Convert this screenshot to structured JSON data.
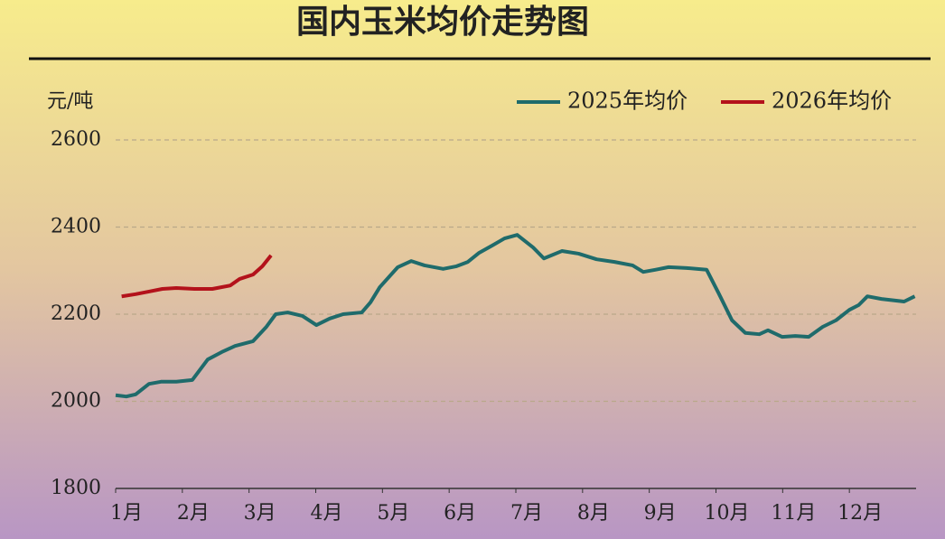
{
  "chart_data": {
    "type": "line",
    "title": "国内玉米均价走势图",
    "y_label": "元/吨",
    "xlim": [
      1,
      13
    ],
    "ylim": [
      1800,
      2600
    ],
    "xticks": [
      {
        "value": 1,
        "label": "1月"
      },
      {
        "value": 2,
        "label": "2月"
      },
      {
        "value": 3,
        "label": "3月"
      },
      {
        "value": 4,
        "label": "4月"
      },
      {
        "value": 5,
        "label": "5月"
      },
      {
        "value": 6,
        "label": "6月"
      },
      {
        "value": 7,
        "label": "7月"
      },
      {
        "value": 8,
        "label": "8月"
      },
      {
        "value": 9,
        "label": "9月"
      },
      {
        "value": 10,
        "label": "10月"
      },
      {
        "value": 11,
        "label": "11月"
      },
      {
        "value": 12,
        "label": "12月"
      }
    ],
    "yticks": [
      1800,
      2000,
      2200,
      2400,
      2600
    ],
    "grid": true,
    "legend": "top-right",
    "series": [
      {
        "name": "2025年均价",
        "color": "#1f6b6b",
        "x": [
          1.0,
          1.16,
          1.3,
          1.5,
          1.68,
          1.91,
          2.15,
          2.38,
          2.59,
          2.79,
          3.06,
          3.26,
          3.4,
          3.58,
          3.8,
          4.01,
          4.21,
          4.41,
          4.69,
          4.82,
          4.96,
          5.23,
          5.43,
          5.63,
          5.91,
          6.11,
          6.28,
          6.45,
          6.65,
          6.83,
          7.02,
          7.26,
          7.42,
          7.69,
          7.94,
          8.21,
          8.48,
          8.75,
          8.91,
          9.09,
          9.29,
          9.56,
          9.86,
          10.04,
          10.24,
          10.44,
          10.65,
          10.78,
          10.99,
          11.19,
          11.39,
          11.6,
          11.8,
          12.0,
          12.14,
          12.27,
          12.48,
          12.82,
          12.98
        ],
        "values": [
          2014,
          2011,
          2016,
          2040,
          2045,
          2045,
          2049,
          2096,
          2113,
          2127,
          2138,
          2171,
          2200,
          2204,
          2196,
          2175,
          2190,
          2200,
          2204,
          2227,
          2262,
          2308,
          2322,
          2312,
          2304,
          2310,
          2320,
          2341,
          2358,
          2374,
          2382,
          2353,
          2328,
          2345,
          2339,
          2326,
          2320,
          2312,
          2297,
          2302,
          2308,
          2306,
          2302,
          2248,
          2186,
          2157,
          2154,
          2163,
          2148,
          2150,
          2148,
          2171,
          2186,
          2210,
          2221,
          2241,
          2235,
          2229,
          2241
        ]
      },
      {
        "name": "2026年均价",
        "color": "#b3121b",
        "x": [
          1.09,
          1.3,
          1.5,
          1.7,
          1.91,
          2.18,
          2.45,
          2.72,
          2.86,
          3.06,
          3.2,
          3.33
        ],
        "values": [
          2241,
          2246,
          2252,
          2258,
          2260,
          2258,
          2258,
          2266,
          2281,
          2291,
          2310,
          2335
        ]
      }
    ]
  }
}
